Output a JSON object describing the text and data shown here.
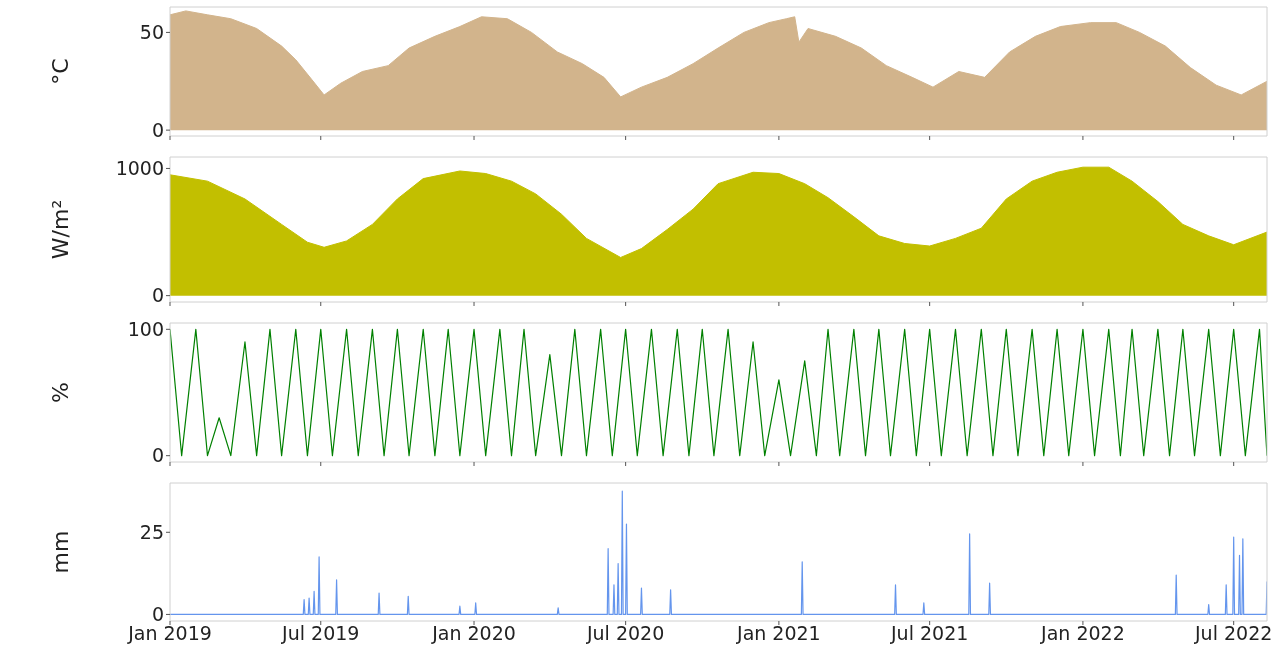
{
  "chart_data": [
    {
      "type": "area",
      "ylabel": "°C",
      "color": "#d2b48c",
      "xlim": [
        "2019-01-01",
        "2022-08-10"
      ],
      "xticks": [
        {
          "value": "2019-01-01",
          "label": null
        },
        {
          "value": "2019-07-01",
          "label": null
        },
        {
          "value": "2020-01-01",
          "label": null
        },
        {
          "value": "2020-07-01",
          "label": null
        },
        {
          "value": "2021-01-01",
          "label": null
        },
        {
          "value": "2021-07-01",
          "label": null
        },
        {
          "value": "2022-01-01",
          "label": null
        },
        {
          "value": "2022-07-01",
          "label": null
        }
      ],
      "ylim": [
        -3,
        63
      ],
      "yticks": [
        0,
        50
      ],
      "tick_labels": "y",
      "x": [
        "2019-01-01",
        "2019-01-20",
        "2019-02-15",
        "2019-03-15",
        "2019-04-15",
        "2019-05-15",
        "2019-06-01",
        "2019-06-20",
        "2019-07-05",
        "2019-07-25",
        "2019-08-20",
        "2019-09-20",
        "2019-10-15",
        "2019-11-15",
        "2019-12-15",
        "2020-01-10",
        "2020-02-10",
        "2020-03-10",
        "2020-04-10",
        "2020-05-10",
        "2020-06-05",
        "2020-06-25",
        "2020-07-20",
        "2020-08-20",
        "2020-09-20",
        "2020-10-20",
        "2020-11-20",
        "2020-12-20",
        "2021-01-10",
        "2021-01-20",
        "2021-01-25",
        "2021-02-05",
        "2021-03-10",
        "2021-04-10",
        "2021-05-10",
        "2021-06-10",
        "2021-07-05",
        "2021-08-05",
        "2021-09-05",
        "2021-10-05",
        "2021-11-05",
        "2021-12-05",
        "2022-01-10",
        "2022-02-10",
        "2022-03-10",
        "2022-04-10",
        "2022-05-10",
        "2022-06-10",
        "2022-07-10",
        "2022-08-10"
      ],
      "values": [
        59,
        61,
        59,
        57,
        52,
        43,
        36,
        26,
        18,
        24,
        30,
        33,
        42,
        48,
        53,
        58,
        57,
        50,
        40,
        34,
        27,
        17,
        22,
        27,
        34,
        42,
        50,
        55,
        57,
        58,
        45,
        52,
        48,
        42,
        33,
        27,
        22,
        30,
        27,
        40,
        48,
        53,
        55,
        55,
        50,
        43,
        32,
        23,
        18,
        25
      ]
    },
    {
      "type": "area",
      "ylabel": "W/m²",
      "color": "#c2bf00",
      "xlim": [
        "2019-01-01",
        "2022-08-10"
      ],
      "xticks": [
        {
          "value": "2019-01-01",
          "label": null
        },
        {
          "value": "2019-07-01",
          "label": null
        },
        {
          "value": "2020-01-01",
          "label": null
        },
        {
          "value": "2020-07-01",
          "label": null
        },
        {
          "value": "2021-01-01",
          "label": null
        },
        {
          "value": "2021-07-01",
          "label": null
        },
        {
          "value": "2022-01-01",
          "label": null
        },
        {
          "value": "2022-07-01",
          "label": null
        }
      ],
      "ylim": [
        -50,
        1090
      ],
      "yticks": [
        0,
        1000
      ],
      "tick_labels": "y",
      "x": [
        "2019-01-01",
        "2019-02-15",
        "2019-04-01",
        "2019-05-15",
        "2019-06-15",
        "2019-07-05",
        "2019-08-01",
        "2019-09-01",
        "2019-10-01",
        "2019-11-01",
        "2019-12-15",
        "2020-01-15",
        "2020-02-15",
        "2020-03-15",
        "2020-04-15",
        "2020-05-15",
        "2020-06-25",
        "2020-07-20",
        "2020-08-20",
        "2020-09-20",
        "2020-10-20",
        "2020-12-01",
        "2021-01-01",
        "2021-02-01",
        "2021-03-01",
        "2021-04-01",
        "2021-05-01",
        "2021-06-01",
        "2021-07-01",
        "2021-08-01",
        "2021-09-01",
        "2021-10-01",
        "2021-11-01",
        "2021-12-01",
        "2022-01-01",
        "2022-02-01",
        "2022-03-01",
        "2022-04-01",
        "2022-05-01",
        "2022-06-01",
        "2022-07-01",
        "2022-08-10"
      ],
      "values": [
        950,
        900,
        760,
        560,
        420,
        380,
        430,
        560,
        760,
        920,
        980,
        960,
        900,
        800,
        640,
        450,
        300,
        370,
        520,
        680,
        880,
        970,
        960,
        880,
        770,
        620,
        470,
        410,
        390,
        450,
        530,
        760,
        900,
        970,
        1010,
        1010,
        900,
        740,
        560,
        470,
        400,
        500
      ]
    },
    {
      "type": "line",
      "ylabel": "%",
      "color": "#008000",
      "xlim": [
        "2019-01-01",
        "2022-08-10"
      ],
      "xticks": [
        {
          "value": "2019-01-01",
          "label": null
        },
        {
          "value": "2019-07-01",
          "label": null
        },
        {
          "value": "2020-01-01",
          "label": null
        },
        {
          "value": "2020-07-01",
          "label": null
        },
        {
          "value": "2021-01-01",
          "label": null
        },
        {
          "value": "2021-07-01",
          "label": null
        },
        {
          "value": "2022-01-01",
          "label": null
        },
        {
          "value": "2022-07-01",
          "label": null
        }
      ],
      "ylim": [
        -5,
        105
      ],
      "yticks": [
        0,
        100
      ],
      "tick_labels": "y",
      "x": [
        "2019-01-01",
        "2019-01-15",
        "2019-02-01",
        "2019-02-15",
        "2019-03-01",
        "2019-03-15",
        "2019-04-01",
        "2019-04-15",
        "2019-05-01",
        "2019-05-15",
        "2019-06-01",
        "2019-06-15",
        "2019-07-01",
        "2019-07-15",
        "2019-08-01",
        "2019-08-15",
        "2019-09-01",
        "2019-09-15",
        "2019-10-01",
        "2019-10-15",
        "2019-11-01",
        "2019-11-15",
        "2019-12-01",
        "2019-12-15",
        "2020-01-01",
        "2020-01-15",
        "2020-02-01",
        "2020-02-15",
        "2020-03-01",
        "2020-03-15",
        "2020-04-01",
        "2020-04-15",
        "2020-05-01",
        "2020-05-15",
        "2020-06-01",
        "2020-06-15",
        "2020-07-01",
        "2020-07-15",
        "2020-08-01",
        "2020-08-15",
        "2020-09-01",
        "2020-09-15",
        "2020-10-01",
        "2020-10-15",
        "2020-11-01",
        "2020-11-15",
        "2020-12-01",
        "2020-12-15",
        "2021-01-01",
        "2021-01-15",
        "2021-02-01",
        "2021-02-15",
        "2021-03-01",
        "2021-03-15",
        "2021-04-01",
        "2021-04-15",
        "2021-05-01",
        "2021-05-15",
        "2021-06-01",
        "2021-06-15",
        "2021-07-01",
        "2021-07-15",
        "2021-08-01",
        "2021-08-15",
        "2021-09-01",
        "2021-09-15",
        "2021-10-01",
        "2021-10-15",
        "2021-11-01",
        "2021-11-15",
        "2021-12-01",
        "2021-12-15",
        "2022-01-01",
        "2022-01-15",
        "2022-02-01",
        "2022-02-15",
        "2022-03-01",
        "2022-03-15",
        "2022-04-01",
        "2022-04-15",
        "2022-05-01",
        "2022-05-15",
        "2022-06-01",
        "2022-06-15",
        "2022-07-01",
        "2022-07-15",
        "2022-08-01",
        "2022-08-10"
      ],
      "values": [
        100,
        0,
        100,
        0,
        30,
        0,
        90,
        0,
        100,
        0,
        100,
        0,
        100,
        0,
        100,
        0,
        100,
        0,
        100,
        0,
        100,
        0,
        100,
        0,
        100,
        0,
        100,
        0,
        100,
        0,
        80,
        0,
        100,
        0,
        100,
        0,
        100,
        0,
        100,
        0,
        100,
        0,
        100,
        0,
        100,
        0,
        90,
        0,
        60,
        0,
        75,
        0,
        100,
        0,
        100,
        0,
        100,
        0,
        100,
        0,
        100,
        0,
        100,
        0,
        100,
        0,
        100,
        0,
        100,
        0,
        100,
        0,
        100,
        0,
        100,
        0,
        100,
        0,
        100,
        0,
        100,
        0,
        100,
        0,
        100,
        0,
        100,
        0
      ]
    },
    {
      "type": "line",
      "ylabel": "mm",
      "color": "#6495ed",
      "xlim": [
        "2019-01-01",
        "2022-08-10"
      ],
      "xticks": [
        {
          "value": "2019-01-01",
          "label": "Jan 2019"
        },
        {
          "value": "2019-07-01",
          "label": "Jul 2019"
        },
        {
          "value": "2020-01-01",
          "label": "Jan 2020"
        },
        {
          "value": "2020-07-01",
          "label": "Jul 2020"
        },
        {
          "value": "2021-01-01",
          "label": "Jan 2021"
        },
        {
          "value": "2021-07-01",
          "label": "Jul 2021"
        },
        {
          "value": "2022-01-01",
          "label": "Jan 2022"
        },
        {
          "value": "2022-07-01",
          "label": "Jul 2022"
        }
      ],
      "ylim": [
        -2,
        40
      ],
      "yticks": [
        0,
        25
      ],
      "x": [
        "2019-01-01",
        "2019-06-10",
        "2019-06-11",
        "2019-06-12",
        "2019-06-16",
        "2019-06-17",
        "2019-06-18",
        "2019-06-22",
        "2019-06-23",
        "2019-06-24",
        "2019-06-28",
        "2019-06-29",
        "2019-06-30",
        "2019-07-19",
        "2019-07-20",
        "2019-07-21",
        "2019-09-08",
        "2019-09-09",
        "2019-09-10",
        "2019-10-13",
        "2019-10-14",
        "2019-10-15",
        "2019-12-14",
        "2019-12-15",
        "2019-12-16",
        "2020-01-02",
        "2020-01-03",
        "2020-01-04",
        "2020-04-10",
        "2020-04-11",
        "2020-04-12",
        "2020-06-09",
        "2020-06-10",
        "2020-06-11",
        "2020-06-16",
        "2020-06-17",
        "2020-06-18",
        "2020-06-21",
        "2020-06-22",
        "2020-06-23",
        "2020-06-26",
        "2020-06-27",
        "2020-06-28",
        "2020-07-01",
        "2020-07-02",
        "2020-07-03",
        "2020-07-19",
        "2020-07-20",
        "2020-07-21",
        "2020-08-23",
        "2020-08-24",
        "2020-08-25",
        "2021-01-28",
        "2021-01-29",
        "2021-01-30",
        "2021-05-20",
        "2021-05-21",
        "2021-05-22",
        "2021-06-23",
        "2021-06-24",
        "2021-06-25",
        "2021-08-17",
        "2021-08-18",
        "2021-08-19",
        "2021-09-10",
        "2021-09-11",
        "2021-09-12",
        "2022-04-22",
        "2022-04-23",
        "2022-04-24",
        "2022-05-31",
        "2022-06-01",
        "2022-06-02",
        "2022-06-21",
        "2022-06-22",
        "2022-06-23",
        "2022-06-30",
        "2022-07-01",
        "2022-07-02",
        "2022-07-07",
        "2022-07-08",
        "2022-07-09",
        "2022-07-11",
        "2022-07-12",
        "2022-07-13",
        "2022-08-09",
        "2022-08-10"
      ],
      "values": [
        0,
        0,
        4.5,
        0,
        0,
        5,
        0,
        0,
        7,
        0,
        0,
        17.5,
        0,
        0,
        10.5,
        0,
        0,
        6.5,
        0,
        0,
        5.5,
        0,
        0,
        2.5,
        0,
        0,
        3.5,
        0,
        0,
        2,
        0,
        0,
        20,
        0,
        0,
        9,
        0,
        0,
        15.5,
        0,
        0,
        37.5,
        0,
        0,
        27.5,
        0,
        0,
        8,
        0,
        0,
        7.5,
        0,
        0,
        16,
        0,
        0,
        9,
        0,
        0,
        3.5,
        0,
        0,
        24.5,
        0,
        0,
        9.5,
        0,
        0,
        12,
        0,
        0,
        3,
        0,
        0,
        9,
        0,
        0,
        23.5,
        0,
        0,
        18,
        0,
        0,
        23,
        0,
        0,
        10
      ]
    }
  ]
}
